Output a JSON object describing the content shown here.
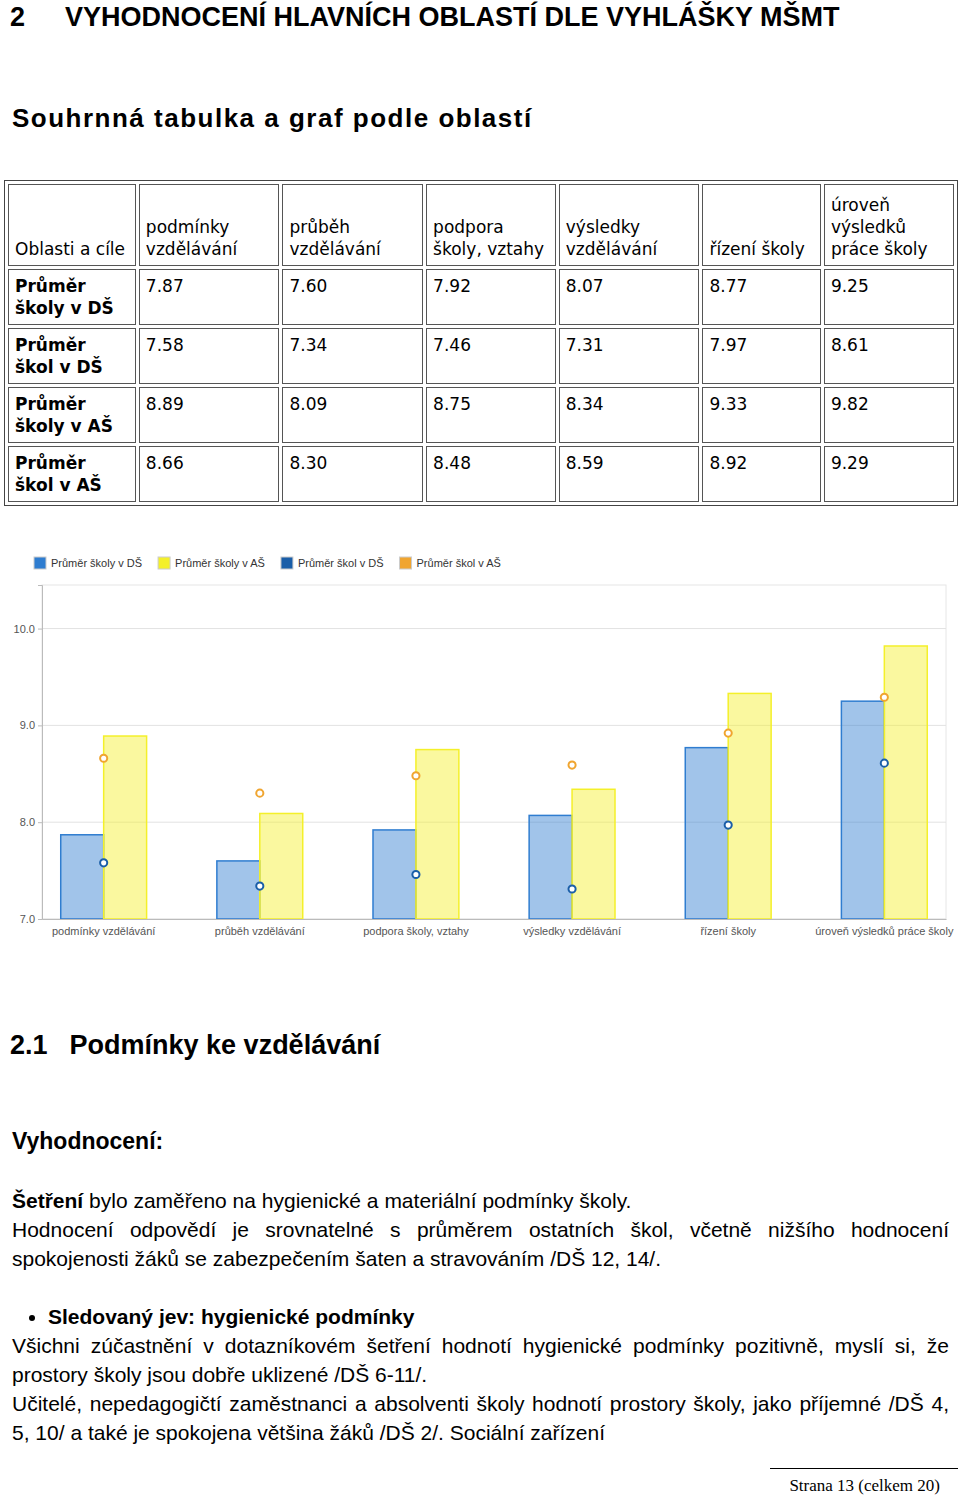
{
  "heading": {
    "number": "2",
    "title": "VYHODNOCENÍ HLAVNÍCH OBLASTÍ DLE VYHLÁŠKY MŠMT"
  },
  "subheading": "Souhrnná tabulka a graf podle oblastí",
  "table": {
    "header": [
      "Oblasti a cíle",
      "podmínky vzdělávání",
      "průběh vzdělávání",
      "podpora školy, vztahy",
      "výsledky vzdělávání",
      "řízení školy",
      "úroveň výsledků práce školy"
    ],
    "rows": [
      [
        "Průměr školy v DŠ",
        "7.87",
        "7.60",
        "7.92",
        "8.07",
        "8.77",
        "9.25"
      ],
      [
        "Průměr škol v DŠ",
        "7.58",
        "7.34",
        "7.46",
        "7.31",
        "7.97",
        "8.61"
      ],
      [
        "Průměr školy v AŠ",
        "8.89",
        "8.09",
        "8.75",
        "8.34",
        "9.33",
        "9.82"
      ],
      [
        "Průměr škol v AŠ",
        "8.66",
        "8.30",
        "8.48",
        "8.59",
        "8.92",
        "9.29"
      ]
    ]
  },
  "chart_data": {
    "type": "bar",
    "categories": [
      "podmínky vzdělávání",
      "průběh vzdělávání",
      "podpora školy, vztahy",
      "výsledky vzdělávání",
      "řízení školy",
      "úroveň výsledků práce školy"
    ],
    "series": [
      {
        "name": "Průměr školy v DŠ",
        "type": "bar",
        "color": "#2f7dd0",
        "values": [
          7.87,
          7.6,
          7.92,
          8.07,
          8.77,
          9.25
        ]
      },
      {
        "name": "Průměr školy v AŠ",
        "type": "bar",
        "color": "#f4f02a",
        "values": [
          8.89,
          8.09,
          8.75,
          8.34,
          9.33,
          9.82
        ]
      },
      {
        "name": "Průměr škol v DŠ",
        "type": "scatter",
        "marker": "circle",
        "color": "#1a5ea8",
        "values": [
          7.58,
          7.34,
          7.46,
          7.31,
          7.97,
          8.61
        ]
      },
      {
        "name": "Průměr škol v AŠ",
        "type": "scatter",
        "marker": "circle",
        "color": "#f0a530",
        "values": [
          8.66,
          8.3,
          8.48,
          8.59,
          8.92,
          9.29
        ]
      }
    ],
    "ylim": [
      7.0,
      10.45
    ],
    "yticks": [
      {
        "value": 7,
        "label": "7.0"
      },
      {
        "value": 8,
        "label": "8.0"
      },
      {
        "value": 9,
        "label": "9.0"
      },
      {
        "value": 10,
        "label": "10.0"
      }
    ],
    "grid": true,
    "legend": "top-left"
  },
  "section": {
    "number": "2.1",
    "title": "Podmínky ke vzdělávání",
    "label": "Vyhodnocení:",
    "paragraphs": [
      {
        "lead": "Šetření",
        "text": " bylo zaměřeno na hygienické a materiální podmínky školy."
      },
      {
        "text": "Hodnocení odpovědí je srovnatelné s průměrem ostatních škol, včetně nižšího hodnocení spokojenosti žáků se zabezpečením šaten a stravováním /DŠ 12, 14/."
      },
      {
        "bullet": "Sledovaný jev: hygienické podmínky"
      },
      {
        "text": "Všichni zúčastnění v dotazníkovém šetření hodnotí hygienické podmínky pozitivně, myslí si, že prostory školy jsou dobře uklizené /DŠ 6-11/."
      },
      {
        "text": "Učitelé, nepedagogičtí zaměstnanci a absolventi školy hodnotí prostory školy, jako příjemné /DŠ 4, 5, 10/ a také je spokojena většina žáků /DŠ 2/. Sociální zařízení"
      }
    ]
  },
  "footer": "Strana 13 (celkem 20)"
}
